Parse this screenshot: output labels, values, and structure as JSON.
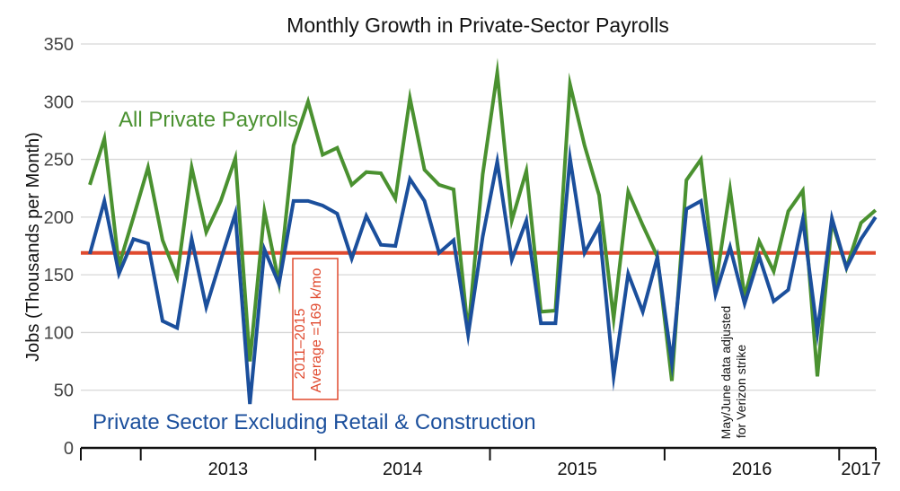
{
  "chart_data": {
    "type": "line",
    "title": "Monthly Growth in Private-Sector Payrolls",
    "ylabel": "Jobs (Thousands per Month)",
    "xlabel": "",
    "ylim": [
      0,
      350
    ],
    "yticks": [
      0,
      50,
      100,
      150,
      200,
      250,
      300,
      350
    ],
    "year_labels": [
      "2013",
      "2014",
      "2015",
      "2016",
      "2017"
    ],
    "x_start": "2012-09",
    "grid": true,
    "average": {
      "value": 169,
      "label_line1": "2011–2015",
      "label_line2": "Average =169 k/mo",
      "color": "#e04a2f"
    },
    "annotation": {
      "line1": "May/June data adjusted",
      "line2": "for Verizon strike"
    },
    "series": [
      {
        "name": "All Private Payrolls",
        "color": "#4a9130",
        "values": [
          228,
          268,
          158,
          200,
          243,
          180,
          148,
          243,
          187,
          214,
          251,
          75,
          205,
          143,
          262,
          300,
          254,
          260,
          228,
          239,
          238,
          216,
          303,
          241,
          228,
          224,
          100,
          237,
          325,
          197,
          240,
          118,
          119,
          315,
          262,
          219,
          112,
          222,
          193,
          166,
          58,
          232,
          250,
          140,
          224,
          131,
          179,
          153,
          205,
          223,
          62,
          196,
          156,
          195,
          206
        ]
      },
      {
        "name": "Private Sector Excluding Retail & Construction",
        "color": "#1b4f9c",
        "values": [
          168,
          214,
          151,
          181,
          177,
          110,
          104,
          181,
          122,
          163,
          203,
          38,
          172,
          142,
          214,
          214,
          210,
          203,
          164,
          201,
          176,
          175,
          233,
          214,
          169,
          180,
          98,
          183,
          248,
          163,
          197,
          108,
          108,
          251,
          169,
          192,
          62,
          151,
          118,
          165,
          74,
          207,
          214,
          133,
          174,
          125,
          166,
          127,
          137,
          198,
          100,
          199,
          156,
          181,
          200
        ]
      }
    ]
  }
}
